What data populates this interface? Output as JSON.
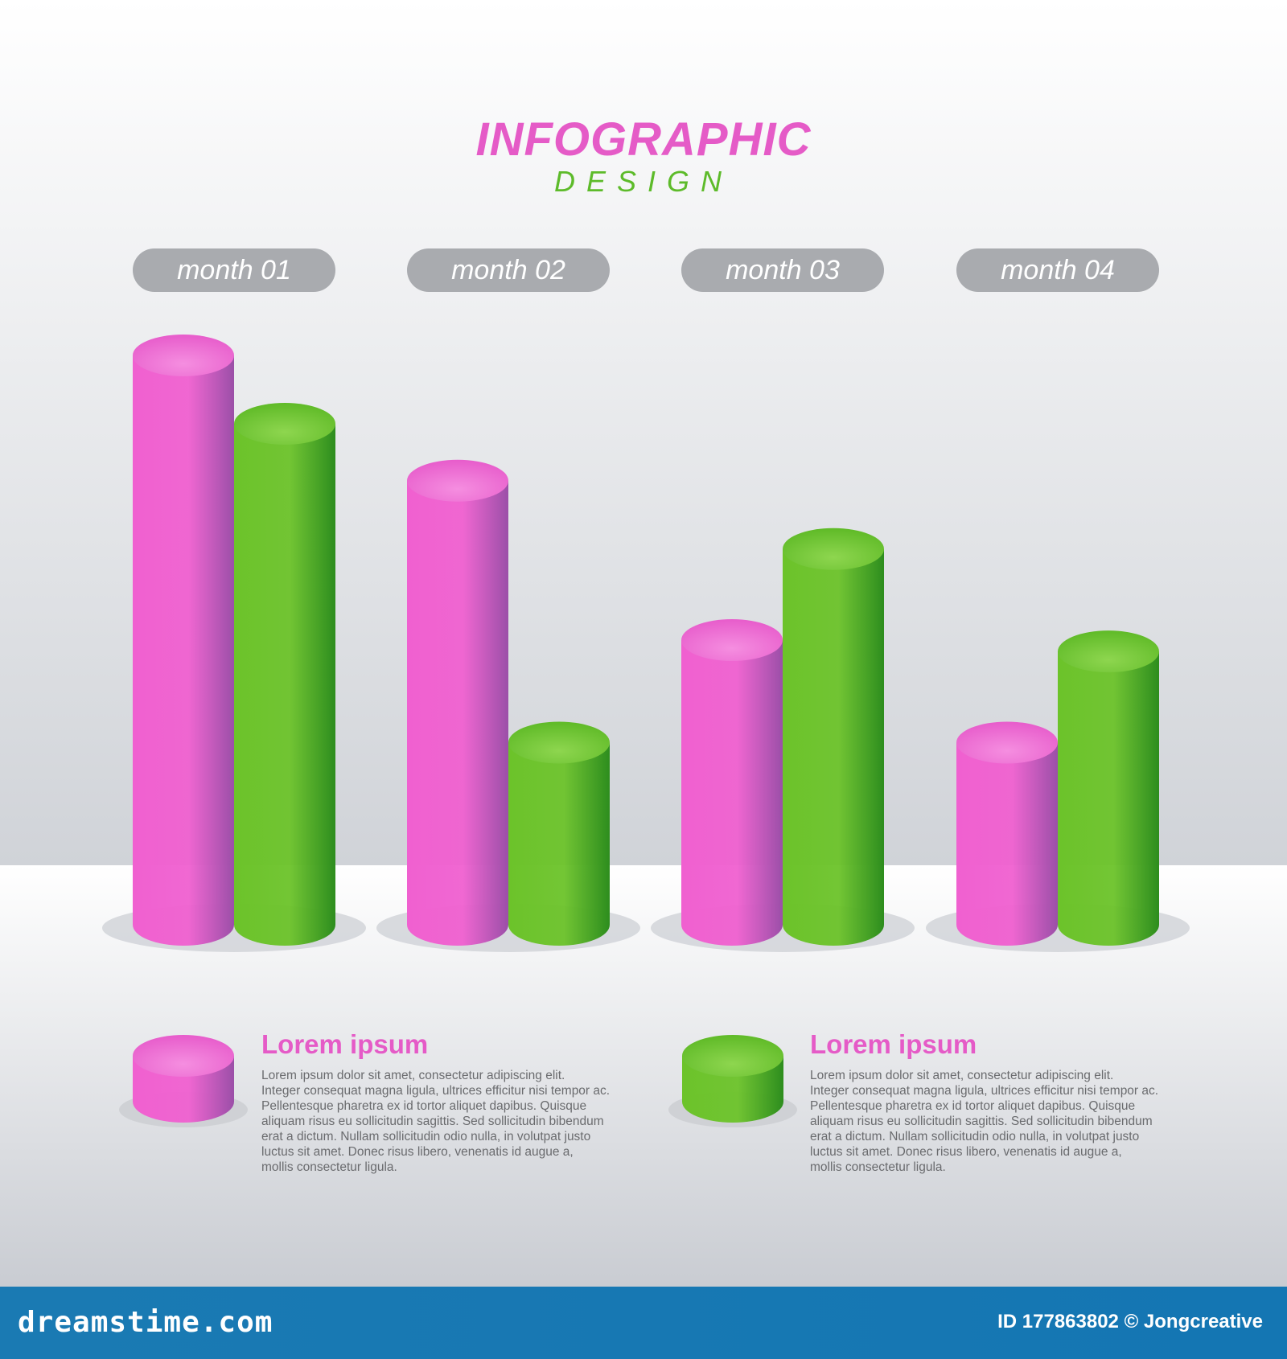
{
  "header": {
    "title": "INFOGRAPHIC",
    "subtitle": "DESIGN"
  },
  "colors": {
    "pink": "#e55bc7",
    "pink_dark": "#9b4fa8",
    "green": "#6cc32a",
    "green_dark": "#2d8d1e",
    "pill": "#a9abaf",
    "footer": "#1677b3"
  },
  "chart_data": {
    "type": "bar",
    "categories": [
      "month 01",
      "month 02",
      "month 03",
      "month 04"
    ],
    "series": [
      {
        "values": [
          10.0,
          7.8,
          5.0,
          3.2
        ],
        "color": "pink"
      },
      {
        "values": [
          8.8,
          3.2,
          6.6,
          4.8
        ],
        "color": "green"
      }
    ],
    "ylim": [
      0,
      10.0
    ],
    "grid": false,
    "style": "3d-cylinders"
  },
  "legend": [
    {
      "color": "pink",
      "heading": "Lorem ipsum",
      "lines": [
        "Lorem ipsum dolor sit amet, consectetur adipiscing elit.",
        "Integer consequat magna ligula, ultrices efficitur nisi tempor ac.",
        "Pellentesque pharetra ex id tortor aliquet dapibus. Quisque",
        "aliquam risus eu sollicitudin sagittis. Sed sollicitudin bibendum",
        "erat a dictum. Nullam sollicitudin odio nulla, in volutpat justo",
        "luctus sit amet. Donec risus libero, venenatis id augue a,",
        "mollis consectetur ligula."
      ]
    },
    {
      "color": "green",
      "heading": "Lorem ipsum",
      "lines": [
        "Lorem ipsum dolor sit amet, consectetur adipiscing elit.",
        "Integer consequat magna ligula, ultrices efficitur nisi tempor ac.",
        "Pellentesque pharetra ex id tortor aliquet dapibus. Quisque",
        "aliquam risus eu sollicitudin sagittis. Sed sollicitudin bibendum",
        "erat a dictum. Nullam sollicitudin odio nulla, in volutpat justo",
        "luctus sit amet. Donec risus libero, venenatis id augue a,",
        "mollis consectetur ligula."
      ]
    }
  ],
  "footer": {
    "logo": "dreamstime.com",
    "id_text": "ID 177863802 © Jongcreative"
  }
}
